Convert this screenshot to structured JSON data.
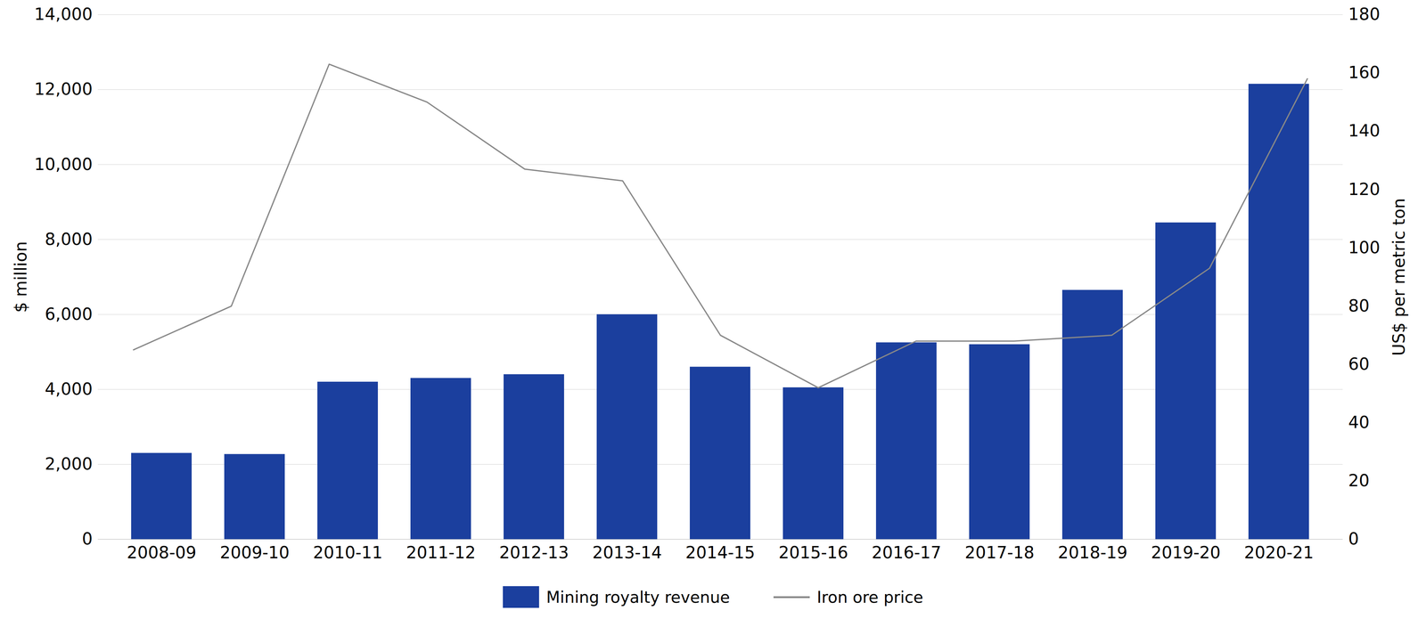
{
  "chart_data": {
    "type": "bar",
    "categories": [
      "2008-09",
      "2009-10",
      "2010-11",
      "2011-12",
      "2012-13",
      "2013-14",
      "2014-15",
      "2015-16",
      "2016-17",
      "2017-18",
      "2018-19",
      "2019-20",
      "2020-21"
    ],
    "series": [
      {
        "name": "Mining royalty revenue",
        "type": "bar",
        "color": "#1b3f9e",
        "values": [
          2300,
          2270,
          4200,
          4300,
          4400,
          6000,
          4600,
          4050,
          5250,
          5200,
          6650,
          8450,
          12150
        ]
      },
      {
        "name": "Iron ore price",
        "type": "line",
        "color": "#888888",
        "axis": "y2",
        "values": [
          65,
          80,
          163,
          150,
          127,
          123,
          70,
          52,
          68,
          68,
          70,
          93,
          158
        ]
      }
    ],
    "ylabel": "$ million",
    "y2label": "US$ per metric ton",
    "ylim": [
      0,
      14000
    ],
    "yticks": [
      0,
      {
        "value": 2000,
        "label": "2,000"
      },
      {
        "value": 4000,
        "label": "4,000"
      },
      {
        "value": 6000,
        "label": "6,000"
      },
      {
        "value": 8000,
        "label": "8,000"
      },
      {
        "value": 10000,
        "label": "10,000"
      },
      {
        "value": 12000,
        "label": "12,000"
      },
      {
        "value": 14000,
        "label": "14,000"
      }
    ],
    "y2lim": [
      0,
      180
    ],
    "y2ticks": [
      0,
      20,
      40,
      60,
      80,
      100,
      120,
      140,
      160,
      180
    ],
    "grid": true,
    "legend": "bottom"
  }
}
